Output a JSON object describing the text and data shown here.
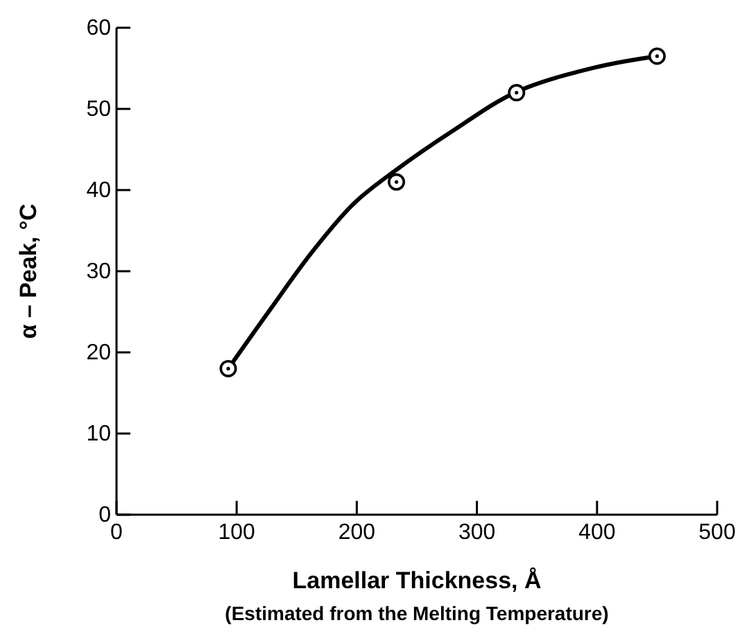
{
  "chart_data": {
    "type": "scatter",
    "xlabel": "Lamellar Thickness, Å",
    "subtitle": "(Estimated from the Melting Temperature)",
    "ylabel": "α – Peak, °C",
    "xlim": [
      0,
      500
    ],
    "xticks": [
      0,
      100,
      200,
      300,
      400,
      500
    ],
    "ylim": [
      0,
      60
    ],
    "yticks": [
      0,
      10,
      20,
      30,
      40,
      50,
      60
    ],
    "grid": false,
    "series": [
      {
        "color": "#000000",
        "marker": "circle",
        "x": [
          93,
          233,
          333,
          450
        ],
        "values": [
          18,
          41,
          52,
          56.5
        ]
      },
      {
        "type": "line",
        "color": "#000000",
        "marker": "none",
        "line_style": "solid",
        "x": [
          93,
          128,
          163,
          198,
          233,
          280,
          333,
          398,
          450
        ],
        "values": [
          18,
          25.3,
          32.4,
          38.4,
          42.5,
          47.3,
          52.1,
          55.1,
          56.5
        ]
      }
    ]
  }
}
